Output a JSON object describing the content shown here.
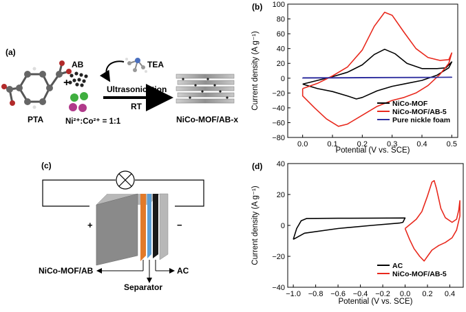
{
  "panel_a": {
    "label": "(a)",
    "pta": "PTA",
    "plus": "+",
    "ab": "AB",
    "ni_co_ratio": "Ni²⁺:Co²⁺ = 1:1",
    "tea": "TEA",
    "arrow_top": "Ultrasonication",
    "arrow_bottom": "RT",
    "product": "NiCo-MOF/AB-x"
  },
  "panel_c": {
    "label": "(c)",
    "plus": "+",
    "minus": "−",
    "left_electrode": "NiCo-MOF/AB",
    "separator": "Separator",
    "right_electrode": "AC"
  },
  "chart_data": [
    {
      "panel": "(b)",
      "type": "line",
      "xlabel": "Potential (V vs. SCE)",
      "ylabel": "Current density (A g⁻¹)",
      "xlim": [
        -0.05,
        0.52
      ],
      "ylim": [
        -80,
        100
      ],
      "xticks": [
        0.0,
        0.1,
        0.2,
        0.3,
        0.4,
        0.5
      ],
      "xtick_labels": [
        "0.0",
        "0.1",
        "0.2",
        "0.3",
        "0.4",
        "0.5"
      ],
      "yticks": [
        -80,
        -60,
        -40,
        -20,
        0,
        20,
        40,
        60,
        80,
        100
      ],
      "ytick_labels": [
        "−80",
        "−60",
        "−40",
        "−20",
        "0",
        "20",
        "40",
        "60",
        "80",
        "100"
      ],
      "legend_position": "bottom-right",
      "series": [
        {
          "name": "NiCo-MOF",
          "color": "#000000",
          "points": [
            [
              0.0,
              -8
            ],
            [
              0.05,
              -3
            ],
            [
              0.1,
              2
            ],
            [
              0.15,
              8
            ],
            [
              0.2,
              18
            ],
            [
              0.24,
              32
            ],
            [
              0.275,
              39
            ],
            [
              0.31,
              33
            ],
            [
              0.35,
              20
            ],
            [
              0.4,
              13
            ],
            [
              0.45,
              13
            ],
            [
              0.48,
              14
            ],
            [
              0.5,
              22
            ],
            [
              0.49,
              14
            ],
            [
              0.45,
              4
            ],
            [
              0.4,
              -3
            ],
            [
              0.35,
              -7
            ],
            [
              0.3,
              -11
            ],
            [
              0.25,
              -17
            ],
            [
              0.2,
              -26
            ],
            [
              0.18,
              -28
            ],
            [
              0.15,
              -24
            ],
            [
              0.1,
              -18
            ],
            [
              0.05,
              -14
            ],
            [
              0.0,
              -8
            ]
          ]
        },
        {
          "name": "NiCo-MOF/AB-5",
          "color": "#e8281c",
          "points": [
            [
              0.0,
              -14
            ],
            [
              0.05,
              -7
            ],
            [
              0.1,
              3
            ],
            [
              0.15,
              15
            ],
            [
              0.2,
              38
            ],
            [
              0.24,
              70
            ],
            [
              0.275,
              89
            ],
            [
              0.3,
              85
            ],
            [
              0.34,
              62
            ],
            [
              0.38,
              40
            ],
            [
              0.42,
              28
            ],
            [
              0.46,
              24
            ],
            [
              0.49,
              25
            ],
            [
              0.5,
              34
            ],
            [
              0.49,
              20
            ],
            [
              0.46,
              5
            ],
            [
              0.42,
              -10
            ],
            [
              0.38,
              -20
            ],
            [
              0.34,
              -26
            ],
            [
              0.3,
              -30
            ],
            [
              0.25,
              -38
            ],
            [
              0.2,
              -50
            ],
            [
              0.15,
              -62
            ],
            [
              0.12,
              -65
            ],
            [
              0.08,
              -55
            ],
            [
              0.04,
              -40
            ],
            [
              0.0,
              -24
            ],
            [
              0.0,
              -14
            ]
          ]
        },
        {
          "name": "Pure nickle foam",
          "color": "#2e2e9e",
          "points": [
            [
              0.0,
              0.5
            ],
            [
              0.1,
              0.7
            ],
            [
              0.2,
              0.9
            ],
            [
              0.3,
              1.0
            ],
            [
              0.4,
              1.1
            ],
            [
              0.5,
              1.3
            ],
            [
              0.4,
              0.9
            ],
            [
              0.3,
              0.7
            ],
            [
              0.2,
              0.5
            ],
            [
              0.1,
              0.3
            ],
            [
              0.0,
              0.2
            ],
            [
              0.0,
              0.5
            ]
          ]
        }
      ]
    },
    {
      "panel": "(d)",
      "type": "line",
      "xlabel": "Potential (V vs. SCE)",
      "ylabel": "Current density (A g⁻¹)",
      "xlim": [
        -1.05,
        0.52
      ],
      "ylim": [
        -40,
        40
      ],
      "xticks": [
        -1.0,
        -0.8,
        -0.6,
        -0.4,
        -0.2,
        0.0,
        0.2,
        0.4
      ],
      "xtick_labels": [
        "−1.0",
        "−0.8",
        "−0.6",
        "−0.4",
        "−0.2",
        "0.0",
        "0.2",
        "0.4"
      ],
      "yticks": [
        -40,
        -20,
        0,
        20,
        40
      ],
      "ytick_labels": [
        "−40",
        "−20",
        "0",
        "20",
        "40"
      ],
      "legend_position": "bottom-left",
      "series": [
        {
          "name": "AC",
          "color": "#000000",
          "points": [
            [
              -1.0,
              -9
            ],
            [
              -0.97,
              -2
            ],
            [
              -0.93,
              3
            ],
            [
              -0.88,
              4.5
            ],
            [
              -0.6,
              4.6
            ],
            [
              -0.3,
              4.7
            ],
            [
              0.0,
              4.8
            ],
            [
              -0.02,
              2
            ],
            [
              -0.05,
              1.5
            ],
            [
              -0.3,
              0
            ],
            [
              -0.6,
              -2
            ],
            [
              -0.9,
              -5
            ],
            [
              -1.0,
              -9
            ]
          ]
        },
        {
          "name": "NiCo-MOF/AB-5",
          "color": "#e8281c",
          "points": [
            [
              0.0,
              -2
            ],
            [
              0.05,
              1
            ],
            [
              0.1,
              4
            ],
            [
              0.15,
              9
            ],
            [
              0.2,
              19
            ],
            [
              0.24,
              28
            ],
            [
              0.26,
              29
            ],
            [
              0.28,
              24
            ],
            [
              0.32,
              11
            ],
            [
              0.36,
              5
            ],
            [
              0.42,
              2
            ],
            [
              0.46,
              4
            ],
            [
              0.48,
              10
            ],
            [
              0.49,
              16
            ],
            [
              0.49,
              6
            ],
            [
              0.46,
              -3
            ],
            [
              0.42,
              -8
            ],
            [
              0.36,
              -11
            ],
            [
              0.3,
              -13
            ],
            [
              0.24,
              -16
            ],
            [
              0.2,
              -20
            ],
            [
              0.17,
              -23
            ],
            [
              0.13,
              -20
            ],
            [
              0.08,
              -15
            ],
            [
              0.04,
              -9
            ],
            [
              0.0,
              -2
            ]
          ]
        }
      ]
    }
  ]
}
